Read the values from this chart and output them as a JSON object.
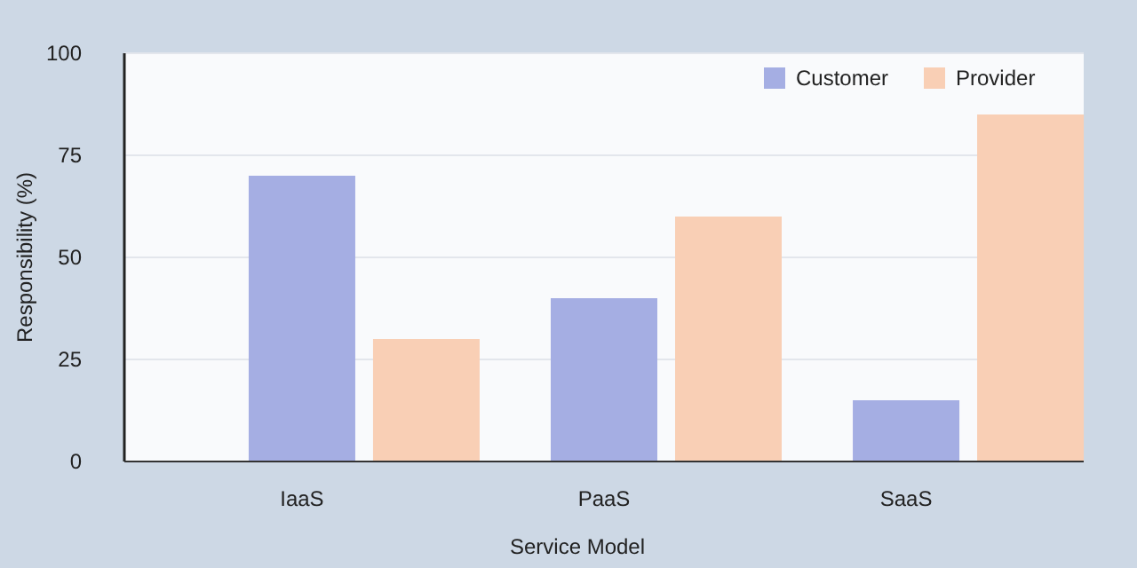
{
  "chart_data": {
    "type": "bar",
    "xlabel": "Service Model",
    "ylabel": "Responsibility (%)",
    "categories": [
      "IaaS",
      "PaaS",
      "SaaS"
    ],
    "series": [
      {
        "name": "Customer",
        "color": "#a5aee3",
        "values": [
          70,
          40,
          15
        ]
      },
      {
        "name": "Provider",
        "color": "#f9cfb5",
        "values": [
          30,
          60,
          85
        ]
      }
    ],
    "ylim": [
      0,
      100
    ],
    "yticks": [
      0,
      25,
      50,
      75,
      100
    ],
    "grid": "y",
    "legend": "top right"
  }
}
